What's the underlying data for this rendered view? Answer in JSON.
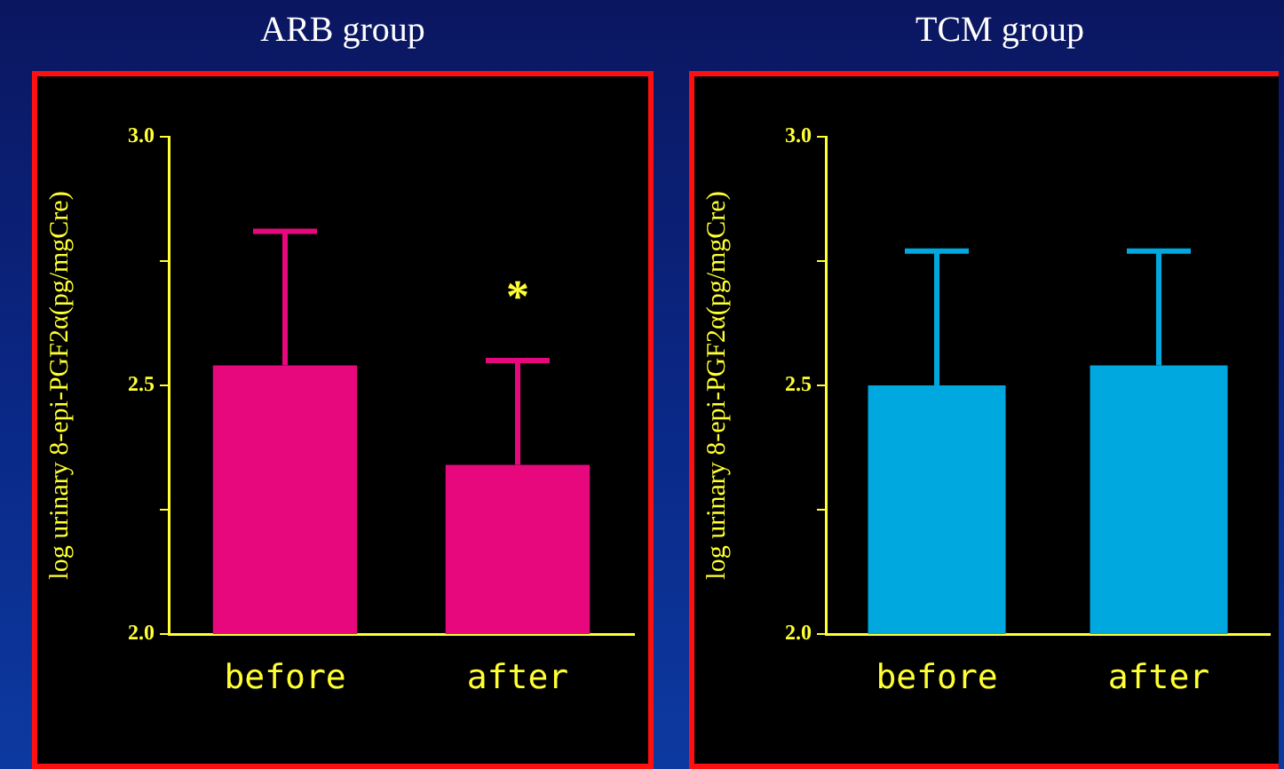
{
  "chart_data": [
    {
      "type": "bar",
      "title": "ARB group",
      "ylabel": "log urinary 8-epi-PGF2α(pg/mgCre)",
      "categories": [
        "before",
        "after"
      ],
      "values": [
        2.54,
        2.34
      ],
      "color": "#e8087e",
      "errors": [
        [
          2.54,
          2.81
        ],
        [
          2.34,
          2.55
        ]
      ],
      "ylim": [
        2.0,
        3.0
      ],
      "yticks": [
        {
          "value": 2.0,
          "label": "2.0"
        },
        {
          "value": 2.25,
          "label": null
        },
        {
          "value": 2.5,
          "label": "2.5"
        },
        {
          "value": 2.75,
          "label": null
        },
        {
          "value": 3.0,
          "label": "3.0"
        }
      ],
      "annotations": [
        "*"
      ]
    },
    {
      "type": "bar",
      "title": "TCM group",
      "ylabel": "log urinary 8-epi-PGF2α(pg/mgCre)",
      "categories": [
        "before",
        "after"
      ],
      "values": [
        2.5,
        2.54
      ],
      "color": "#00a8e0",
      "errors": [
        [
          2.5,
          2.77
        ],
        [
          2.54,
          2.77
        ]
      ],
      "ylim": [
        2.0,
        3.0
      ],
      "yticks": [
        {
          "value": 2.0,
          "label": "2.0"
        },
        {
          "value": 2.25,
          "label": null
        },
        {
          "value": 2.5,
          "label": "2.5"
        },
        {
          "value": 2.75,
          "label": null
        },
        {
          "value": 3.0,
          "label": "3.0"
        }
      ]
    }
  ]
}
